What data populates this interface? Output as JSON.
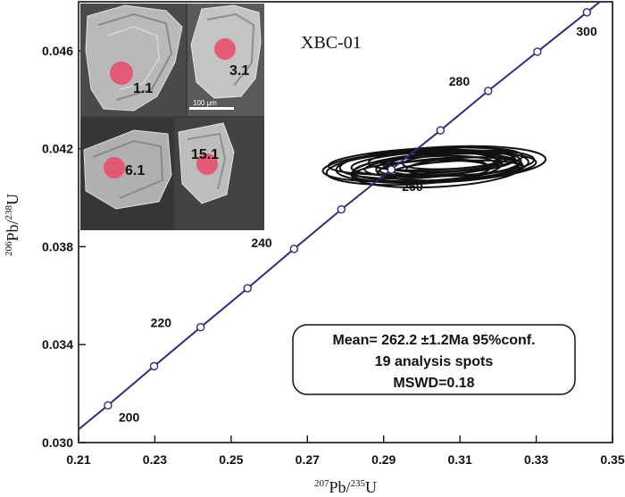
{
  "chart_data": {
    "type": "scatter",
    "title": "",
    "sample_name": "XBC-01",
    "xlabel": {
      "sup": "207",
      "element": "Pb",
      "denominator_sup": "235",
      "denominator_element": "U"
    },
    "ylabel": {
      "sup": "206",
      "element": "Pb",
      "denominator_sup": "238",
      "denominator_element": "U"
    },
    "xlim": [
      0.21,
      0.35
    ],
    "ylim": [
      0.03,
      0.048
    ],
    "x_ticks": [
      0.21,
      0.23,
      0.25,
      0.27,
      0.29,
      0.31,
      0.33,
      0.35
    ],
    "x_tick_labels": [
      "0.21",
      "0.23",
      "0.25",
      "0.27",
      "0.29",
      "0.31",
      "0.33",
      "0.35"
    ],
    "y_ticks": [
      0.03,
      0.034,
      0.038,
      0.042,
      0.046
    ],
    "y_tick_labels": [
      "0.030",
      "0.034",
      "0.038",
      "0.042",
      "0.046"
    ],
    "concordia": {
      "color": "#2e2a80",
      "ages_ma": [
        200,
        210,
        220,
        230,
        240,
        250,
        260,
        270,
        280,
        290,
        300
      ],
      "points": [
        {
          "age": 200,
          "x": 0.2177,
          "y": 0.03152
        },
        {
          "age": 210,
          "x": 0.2298,
          "y": 0.03312
        },
        {
          "age": 220,
          "x": 0.242,
          "y": 0.03471
        },
        {
          "age": 230,
          "x": 0.2543,
          "y": 0.0363
        },
        {
          "age": 240,
          "x": 0.2665,
          "y": 0.03791
        },
        {
          "age": 250,
          "x": 0.2789,
          "y": 0.03952
        },
        {
          "age": 260,
          "x": 0.292,
          "y": 0.04115
        },
        {
          "age": 270,
          "x": 0.3049,
          "y": 0.04275
        },
        {
          "age": 280,
          "x": 0.3174,
          "y": 0.04436
        },
        {
          "age": 290,
          "x": 0.3303,
          "y": 0.04596
        },
        {
          "age": 300,
          "x": 0.3433,
          "y": 0.04757
        }
      ],
      "age_labels": [
        "200",
        "220",
        "240",
        "260",
        "280",
        "300"
      ]
    },
    "ellipses_color": "#111111",
    "ellipses": [
      {
        "cx": 0.3,
        "cy": 0.0413,
        "rx": 0.026,
        "ry": 0.00062
      },
      {
        "cx": 0.305,
        "cy": 0.04135,
        "rx": 0.0275,
        "ry": 0.00072
      },
      {
        "cx": 0.306,
        "cy": 0.04125,
        "rx": 0.024,
        "ry": 0.00055
      },
      {
        "cx": 0.298,
        "cy": 0.0412,
        "rx": 0.023,
        "ry": 0.00065
      },
      {
        "cx": 0.303,
        "cy": 0.0414,
        "rx": 0.0215,
        "ry": 0.00048
      },
      {
        "cx": 0.308,
        "cy": 0.0413,
        "rx": 0.02,
        "ry": 0.0006
      },
      {
        "cx": 0.301,
        "cy": 0.0415,
        "rx": 0.0255,
        "ry": 0.00052
      },
      {
        "cx": 0.304,
        "cy": 0.04112,
        "rx": 0.0225,
        "ry": 0.00068
      },
      {
        "cx": 0.31,
        "cy": 0.0414,
        "rx": 0.0195,
        "ry": 0.0005
      },
      {
        "cx": 0.299,
        "cy": 0.04138,
        "rx": 0.0205,
        "ry": 0.00058
      },
      {
        "cx": 0.307,
        "cy": 0.04118,
        "rx": 0.0185,
        "ry": 0.00045
      },
      {
        "cx": 0.302,
        "cy": 0.04128,
        "rx": 0.017,
        "ry": 0.0004
      },
      {
        "cx": 0.306,
        "cy": 0.04145,
        "rx": 0.016,
        "ry": 0.00038
      },
      {
        "cx": 0.311,
        "cy": 0.04128,
        "rx": 0.015,
        "ry": 0.00035
      },
      {
        "cx": 0.3,
        "cy": 0.04108,
        "rx": 0.018,
        "ry": 0.00042
      },
      {
        "cx": 0.305,
        "cy": 0.04158,
        "rx": 0.019,
        "ry": 0.00044
      },
      {
        "cx": 0.309,
        "cy": 0.0411,
        "rx": 0.0175,
        "ry": 0.0004
      },
      {
        "cx": 0.303,
        "cy": 0.04122,
        "rx": 0.014,
        "ry": 0.00032
      },
      {
        "cx": 0.308,
        "cy": 0.04148,
        "rx": 0.013,
        "ry": 0.0003
      }
    ],
    "stats_box": {
      "line1": "Mean= 262.2 ±1.2Ma 95%conf.",
      "line2": "19 analysis spots",
      "line3": "MSWD=0.18"
    },
    "inset": {
      "grain_labels": [
        "1.1",
        "3.1",
        "6.1",
        "15.1"
      ],
      "scale_bar_label": "100  μm",
      "spot_color": "#e8506e"
    }
  }
}
